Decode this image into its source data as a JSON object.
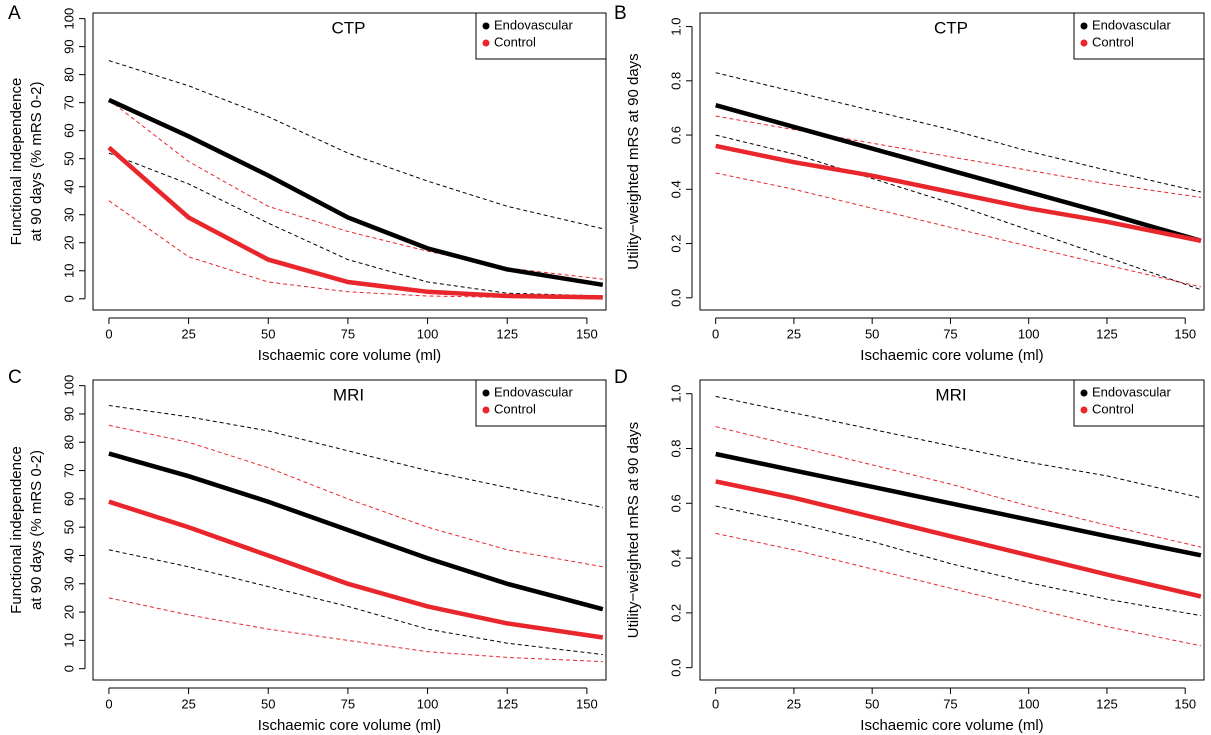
{
  "chart_data": [
    {
      "type": "line",
      "label": "A",
      "title": "CTP",
      "xlabel": "Ischaemic core volume (ml)",
      "ylabel": [
        "Functional independence",
        "at 90 days (% mRS 0-2)"
      ],
      "x": [
        0,
        25,
        50,
        75,
        100,
        125,
        155
      ],
      "xlim": [
        -5,
        156
      ],
      "xticks": [
        0,
        25,
        50,
        75,
        100,
        125,
        150
      ],
      "ylim": [
        -4,
        102
      ],
      "yticks": [
        0,
        10,
        20,
        30,
        40,
        50,
        60,
        70,
        80,
        90,
        100
      ],
      "legend": "topright",
      "series": [
        {
          "name": "Endovascular",
          "color": "#000000",
          "values": [
            71,
            58,
            44,
            29,
            18,
            10.5,
            5
          ],
          "upper": [
            85,
            76,
            65,
            52,
            42,
            33,
            25
          ],
          "lower": [
            52,
            41,
            27,
            14,
            6,
            2,
            1
          ]
        },
        {
          "name": "Control",
          "color": "#e8262b",
          "values": [
            54,
            29,
            14,
            6,
            2.5,
            1,
            0.5
          ],
          "upper": [
            71,
            49,
            33,
            24,
            17,
            11,
            7
          ],
          "lower": [
            35,
            15,
            6,
            2.5,
            1,
            0.5,
            0
          ]
        }
      ]
    },
    {
      "type": "line",
      "label": "B",
      "title": "CTP",
      "xlabel": "Ischaemic core volume (ml)",
      "ylabel": [
        "Utility−weighted mRS at 90 days"
      ],
      "x": [
        0,
        25,
        50,
        75,
        100,
        125,
        155
      ],
      "xlim": [
        -5,
        156
      ],
      "xticks": [
        0,
        25,
        50,
        75,
        100,
        125,
        150
      ],
      "ylim": [
        -0.045,
        1.05
      ],
      "yticks": [
        {
          "value": 0,
          "label": "0.0"
        },
        0.2,
        0.4,
        0.6,
        0.8,
        {
          "value": 1,
          "label": "1.0"
        }
      ],
      "legend": "topright",
      "series": [
        {
          "name": "Endovascular",
          "color": "#000000",
          "values": [
            0.71,
            0.63,
            0.55,
            0.47,
            0.39,
            0.31,
            0.21
          ],
          "upper": [
            0.83,
            0.76,
            0.69,
            0.62,
            0.54,
            0.47,
            0.39
          ],
          "lower": [
            0.6,
            0.53,
            0.44,
            0.35,
            0.25,
            0.15,
            0.03
          ]
        },
        {
          "name": "Control",
          "color": "#e8262b",
          "values": [
            0.56,
            0.5,
            0.45,
            0.39,
            0.33,
            0.28,
            0.21
          ],
          "upper": [
            0.67,
            0.62,
            0.57,
            0.52,
            0.47,
            0.42,
            0.37
          ],
          "lower": [
            0.46,
            0.4,
            0.33,
            0.26,
            0.19,
            0.12,
            0.04
          ]
        }
      ]
    },
    {
      "type": "line",
      "label": "C",
      "title": "MRI",
      "xlabel": "Ischaemic core volume (ml)",
      "ylabel": [
        "Functional independence",
        "at 90 days (% mRS 0-2)"
      ],
      "x": [
        0,
        25,
        50,
        75,
        100,
        125,
        155
      ],
      "xlim": [
        -5,
        156
      ],
      "xticks": [
        0,
        25,
        50,
        75,
        100,
        125,
        150
      ],
      "ylim": [
        -4,
        102
      ],
      "yticks": [
        0,
        10,
        20,
        30,
        40,
        50,
        60,
        70,
        80,
        90,
        100
      ],
      "legend": "topright",
      "series": [
        {
          "name": "Endovascular",
          "color": "#000000",
          "values": [
            76,
            68,
            59,
            49,
            39,
            30,
            21
          ],
          "upper": [
            93,
            89,
            84,
            77,
            70,
            64,
            57
          ],
          "lower": [
            42,
            36,
            29,
            22,
            14,
            9,
            5
          ]
        },
        {
          "name": "Control",
          "color": "#e8262b",
          "values": [
            59,
            50,
            40,
            30,
            22,
            16,
            11
          ],
          "upper": [
            86,
            80,
            71,
            60,
            50,
            42,
            36
          ],
          "lower": [
            25,
            19,
            14,
            10,
            6,
            4,
            2.5
          ]
        }
      ]
    },
    {
      "type": "line",
      "label": "D",
      "title": "MRI",
      "xlabel": "Ischaemic core volume (ml)",
      "ylabel": [
        "Utility−weighted mRS at 90 days"
      ],
      "x": [
        0,
        25,
        50,
        75,
        100,
        125,
        155
      ],
      "xlim": [
        -5,
        156
      ],
      "xticks": [
        0,
        25,
        50,
        75,
        100,
        125,
        150
      ],
      "ylim": [
        -0.045,
        1.05
      ],
      "yticks": [
        {
          "value": 0,
          "label": "0.0"
        },
        0.2,
        0.4,
        0.6,
        0.8,
        {
          "value": 1,
          "label": "1.0"
        }
      ],
      "legend": "topright",
      "series": [
        {
          "name": "Endovascular",
          "color": "#000000",
          "values": [
            0.78,
            0.72,
            0.66,
            0.6,
            0.54,
            0.48,
            0.41
          ],
          "upper": [
            0.99,
            0.93,
            0.87,
            0.81,
            0.75,
            0.7,
            0.62
          ],
          "lower": [
            0.59,
            0.53,
            0.46,
            0.38,
            0.31,
            0.25,
            0.19
          ]
        },
        {
          "name": "Control",
          "color": "#e8262b",
          "values": [
            0.68,
            0.62,
            0.55,
            0.48,
            0.41,
            0.34,
            0.26
          ],
          "upper": [
            0.88,
            0.81,
            0.74,
            0.67,
            0.59,
            0.52,
            0.44
          ],
          "lower": [
            0.49,
            0.43,
            0.36,
            0.29,
            0.22,
            0.15,
            0.08
          ]
        }
      ]
    }
  ]
}
